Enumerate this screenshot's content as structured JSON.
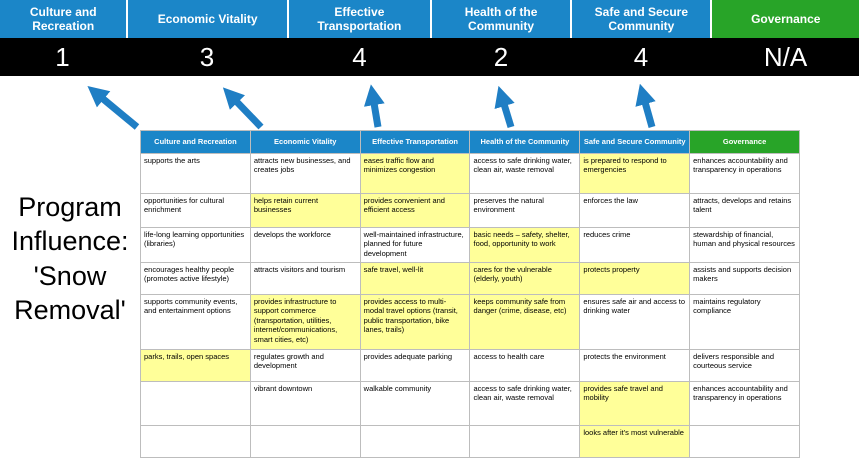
{
  "title": "Program Influence: 'Snow Removal'",
  "colors": {
    "pillar_blue": "#1b86c8",
    "pillar_green": "#28a428",
    "highlight_yellow": "#ffff99",
    "score_band_black": "#000000",
    "arrow_blue": "#1f7ec4"
  },
  "scoreboard": {
    "pillars": [
      {
        "label": "Culture and Recreation",
        "score": "1",
        "color": "#1b86c8"
      },
      {
        "label": "Economic Vitality",
        "score": "3",
        "color": "#1b86c8"
      },
      {
        "label": "Effective Transportation",
        "score": "4",
        "color": "#1b86c8"
      },
      {
        "label": "Health of the Community",
        "score": "2",
        "color": "#1b86c8"
      },
      {
        "label": "Safe and Secure Community",
        "score": "4",
        "color": "#1b86c8"
      },
      {
        "label": "Governance",
        "score": "N/A",
        "color": "#28a428"
      }
    ]
  },
  "matrix": {
    "headers": [
      {
        "label": "Culture and Recreation",
        "color": "#1b86c8"
      },
      {
        "label": "Economic Vitality",
        "color": "#1b86c8"
      },
      {
        "label": "Effective Transportation",
        "color": "#1b86c8"
      },
      {
        "label": "Health of the Community",
        "color": "#1b86c8"
      },
      {
        "label": "Safe and Secure Community",
        "color": "#1b86c8"
      },
      {
        "label": "Governance",
        "color": "#28a428"
      }
    ],
    "rows": [
      [
        {
          "text": "supports the arts",
          "highlight": false
        },
        {
          "text": "attracts new businesses, and creates jobs",
          "highlight": false
        },
        {
          "text": "eases traffic flow and minimizes congestion",
          "highlight": true
        },
        {
          "text": "access to safe drinking water, clean air, waste removal",
          "highlight": false
        },
        {
          "text": "is prepared to respond to emergencies",
          "highlight": true
        },
        {
          "text": "enhances accountability and transparency in operations",
          "highlight": false
        }
      ],
      [
        {
          "text": "opportunities for cultural enrichment",
          "highlight": false
        },
        {
          "text": "helps retain current businesses",
          "highlight": true
        },
        {
          "text": "provides convenient and efficient access",
          "highlight": true
        },
        {
          "text": "preserves the natural environment",
          "highlight": false
        },
        {
          "text": "enforces the law",
          "highlight": false
        },
        {
          "text": "attracts, develops and retains talent",
          "highlight": false
        }
      ],
      [
        {
          "text": "life-long learning opportunities (libraries)",
          "highlight": false
        },
        {
          "text": "develops the workforce",
          "highlight": false
        },
        {
          "text": "well-maintained infrastructure, planned for future development",
          "highlight": false
        },
        {
          "text": "basic needs – safety, shelter, food, opportunity to work",
          "highlight": true
        },
        {
          "text": "reduces crime",
          "highlight": false
        },
        {
          "text": "stewardship of financial, human and physical resources",
          "highlight": false
        }
      ],
      [
        {
          "text": "encourages healthy people (promotes active lifestyle)",
          "highlight": false
        },
        {
          "text": "attracts visitors and tourism",
          "highlight": false
        },
        {
          "text": "safe travel, well-lit",
          "highlight": true
        },
        {
          "text": "cares for the vulnerable (elderly, youth)",
          "highlight": true
        },
        {
          "text": "protects property",
          "highlight": true
        },
        {
          "text": "assists and supports decision makers",
          "highlight": false
        }
      ],
      [
        {
          "text": "supports community events, and entertainment options",
          "highlight": false
        },
        {
          "text": "provides infrastructure to support commerce (transportation, utilities, internet/communications, smart cities, etc)",
          "highlight": true
        },
        {
          "text": "provides access to multi-modal travel options (transit, public transportation, bike lanes, trails)",
          "highlight": true
        },
        {
          "text": "keeps community safe from danger (crime, disease, etc)",
          "highlight": true
        },
        {
          "text": "ensures safe air and access to drinking water",
          "highlight": false
        },
        {
          "text": "maintains regulatory compliance",
          "highlight": false
        }
      ],
      [
        {
          "text": "parks, trails, open spaces",
          "highlight": true
        },
        {
          "text": "regulates growth and development",
          "highlight": false
        },
        {
          "text": "provides adequate parking",
          "highlight": false
        },
        {
          "text": "access to health care",
          "highlight": false
        },
        {
          "text": "protects the environment",
          "highlight": false
        },
        {
          "text": "delivers responsible and courteous service",
          "highlight": false
        }
      ],
      [
        {
          "text": "",
          "highlight": false
        },
        {
          "text": "vibrant downtown",
          "highlight": false
        },
        {
          "text": "walkable community",
          "highlight": false
        },
        {
          "text": "access to safe drinking water, clean air, waste removal",
          "highlight": false
        },
        {
          "text": "provides safe travel and mobility",
          "highlight": true
        },
        {
          "text": "enhances accountability and transparency in operations",
          "highlight": false
        }
      ],
      [
        {
          "text": "",
          "highlight": false
        },
        {
          "text": "",
          "highlight": false
        },
        {
          "text": "",
          "highlight": false
        },
        {
          "text": "",
          "highlight": false
        },
        {
          "text": "looks after it's most vulnerable",
          "highlight": true
        },
        {
          "text": "",
          "highlight": false
        }
      ]
    ]
  }
}
